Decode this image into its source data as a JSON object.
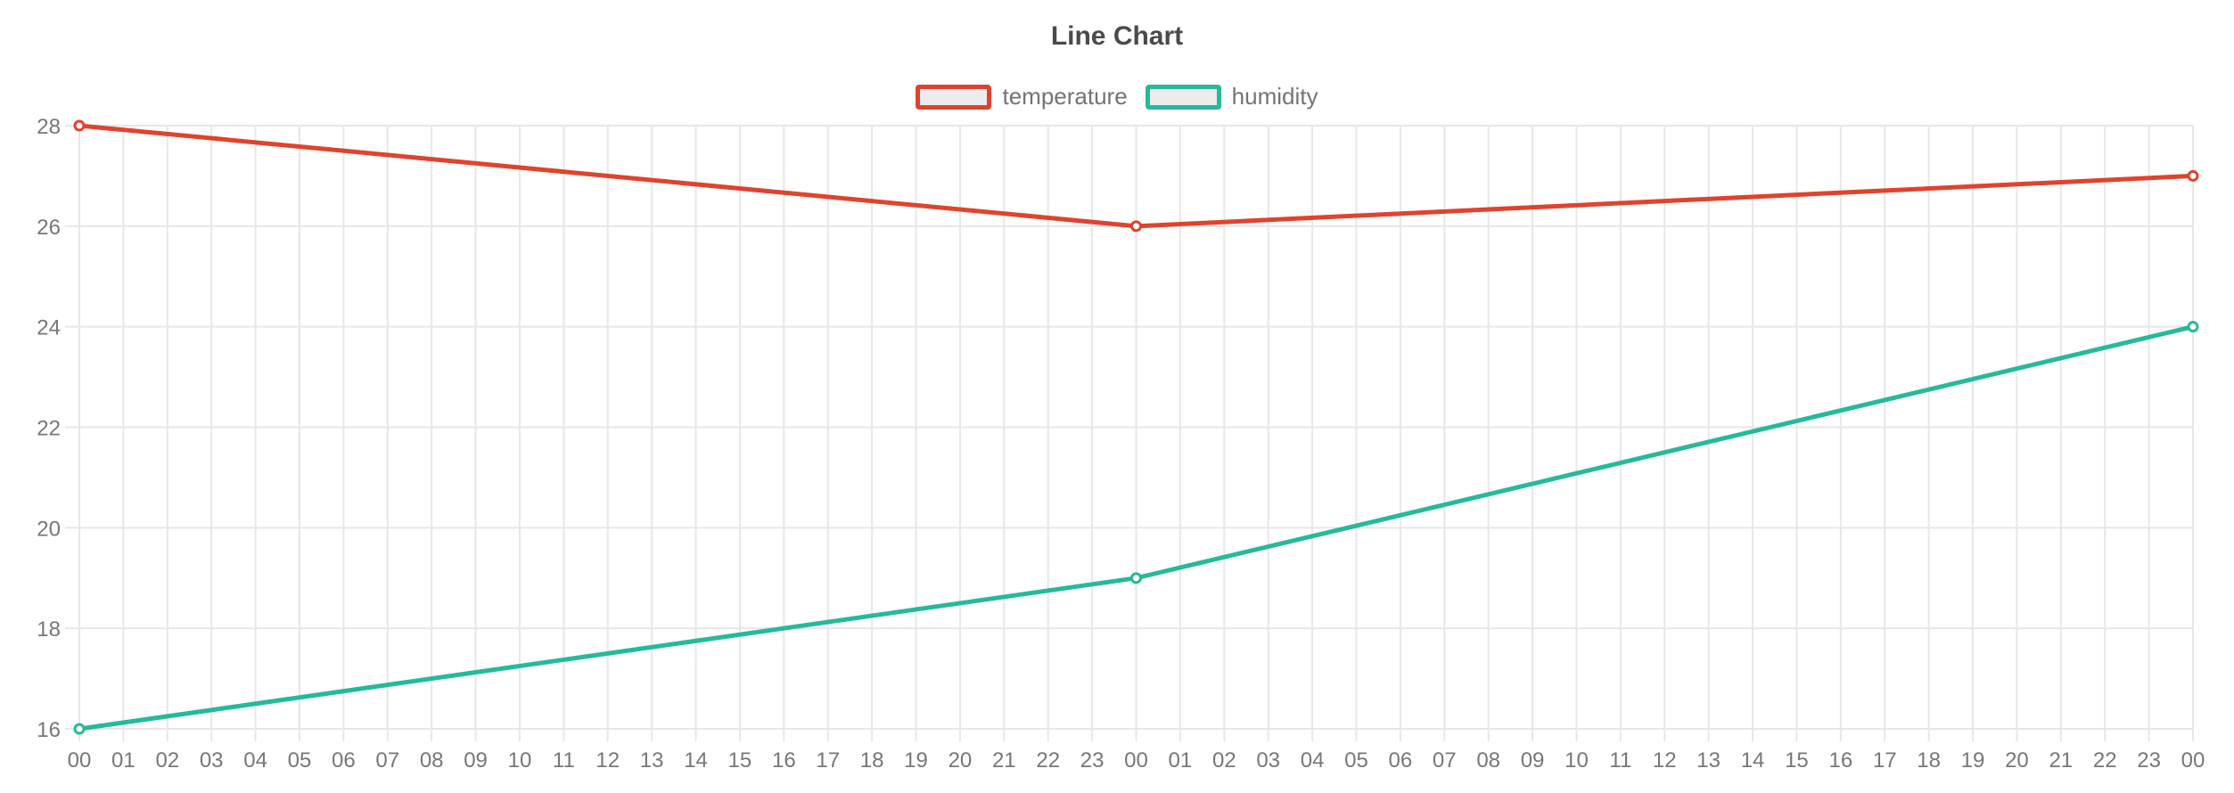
{
  "page": {
    "background": "#ffffff"
  },
  "chart_data": {
    "type": "line",
    "title": "Line Chart",
    "categories": [
      "00",
      "01",
      "02",
      "03",
      "04",
      "05",
      "06",
      "07",
      "08",
      "09",
      "10",
      "11",
      "12",
      "13",
      "14",
      "15",
      "16",
      "17",
      "18",
      "19",
      "20",
      "21",
      "22",
      "23",
      "00",
      "01",
      "02",
      "03",
      "04",
      "05",
      "06",
      "07",
      "08",
      "09",
      "10",
      "11",
      "12",
      "13",
      "14",
      "15",
      "16",
      "17",
      "18",
      "19",
      "20",
      "21",
      "22",
      "23",
      "00"
    ],
    "y_axis": {
      "min": 16,
      "max": 28,
      "step": 2,
      "ticks": [
        16,
        18,
        20,
        22,
        24,
        26,
        28
      ]
    },
    "x_axis": {
      "label": "",
      "tick_count": 49
    },
    "grid": true,
    "legend_position": "top-center",
    "series": [
      {
        "name": "temperature",
        "color": "#e0432d",
        "points": [
          [
            0,
            28
          ],
          [
            24,
            26
          ],
          [
            48,
            27
          ]
        ]
      },
      {
        "name": "humidity",
        "color": "#26b99a",
        "points": [
          [
            0,
            16
          ],
          [
            24,
            19
          ],
          [
            48,
            24
          ]
        ]
      }
    ],
    "point_style": {
      "fill": "#ffffff",
      "radius": 5,
      "stroke_width": 3
    },
    "line_width": 5,
    "colors": {
      "grid": "#e7e7e7",
      "tick_label": "#777777",
      "title": "#4a4a4a",
      "legend_label": "#737373",
      "legend_swatch_fill": "#ececec"
    }
  }
}
